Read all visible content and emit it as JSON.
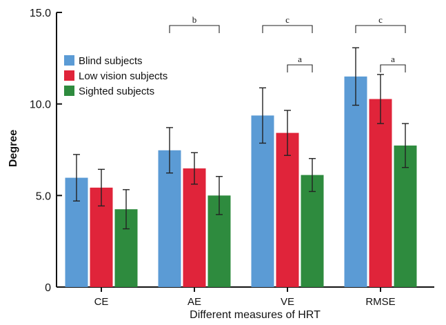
{
  "chart_data": {
    "type": "bar",
    "xlabel": "Different measures of HRT",
    "ylabel": "Degree",
    "ylim": [
      0,
      15
    ],
    "yticks": [
      {
        "value": 0,
        "label": "0"
      },
      {
        "value": 5,
        "label": "5.0"
      },
      {
        "value": 10,
        "label": "10.0"
      },
      {
        "value": 15,
        "label": "15.0"
      }
    ],
    "categories": [
      "CE",
      "AE",
      "VE",
      "RMSE"
    ],
    "series": [
      {
        "name": "Blind subjects",
        "color": "#5B9BD5",
        "values": [
          5.97,
          7.47,
          9.37,
          11.5
        ],
        "errors": [
          1.27,
          1.24,
          1.51,
          1.57
        ]
      },
      {
        "name": "Low vision subjects",
        "color": "#E0243A",
        "values": [
          5.43,
          6.48,
          8.42,
          10.27
        ],
        "errors": [
          1.0,
          0.86,
          1.23,
          1.34
        ]
      },
      {
        "name": "Sighted subjects",
        "color": "#2E8B3E",
        "values": [
          4.25,
          5.0,
          6.12,
          7.73
        ],
        "errors": [
          1.07,
          1.04,
          0.9,
          1.2
        ]
      }
    ],
    "legend": {
      "position": "top-left"
    },
    "grid": false,
    "significance": [
      {
        "category": "AE",
        "from_series": 0,
        "to_series": 2,
        "label": "b",
        "level": "high"
      },
      {
        "category": "VE",
        "from_series": 0,
        "to_series": 2,
        "label": "c",
        "level": "high"
      },
      {
        "category": "VE",
        "from_series": 1,
        "to_series": 2,
        "label": "a",
        "level": "low"
      },
      {
        "category": "RMSE",
        "from_series": 0,
        "to_series": 2,
        "label": "c",
        "level": "high"
      },
      {
        "category": "RMSE",
        "from_series": 1,
        "to_series": 2,
        "label": "a",
        "level": "low"
      }
    ]
  }
}
